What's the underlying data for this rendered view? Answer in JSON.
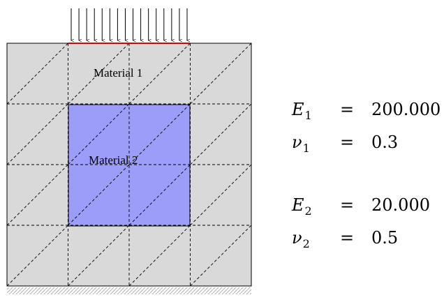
{
  "colors": {
    "material_1_fill": "#d9d9d9",
    "material_2_fill": "#9c9cf9",
    "load_line": "#e00000",
    "mesh": "#000000",
    "support_hatch": "#b0b0b0"
  },
  "mesh": {
    "columns": 4,
    "rows": 4,
    "diagonal_direction": "bottom-left-to-top-right"
  },
  "load": {
    "arrow_count": 16,
    "direction": "down"
  },
  "regions": {
    "material_1": {
      "label": "Material 1"
    },
    "material_2": {
      "label": "Material 2"
    }
  },
  "properties": [
    {
      "symbol": "E",
      "subscript": "1",
      "equals": "=",
      "value": "200.000"
    },
    {
      "symbol": "ν",
      "subscript": "1",
      "equals": "=",
      "value": "0.3"
    },
    {
      "symbol": "E",
      "subscript": "2",
      "equals": "=",
      "value": "20.000"
    },
    {
      "symbol": "ν",
      "subscript": "2",
      "equals": "=",
      "value": "0.5"
    }
  ]
}
